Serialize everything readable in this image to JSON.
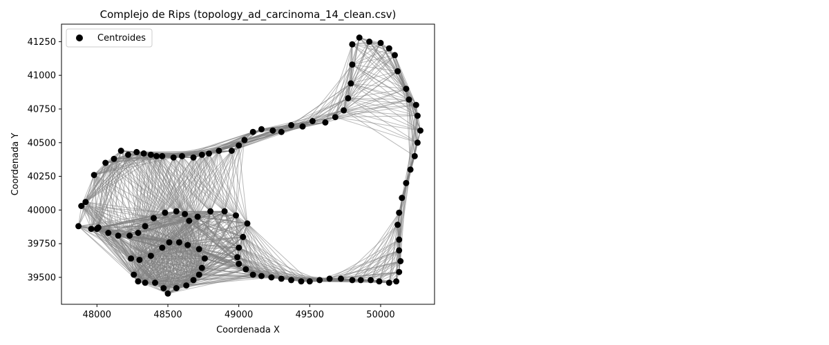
{
  "chart_data": {
    "type": "scatter",
    "title": "Complejo de Rips (topology_ad_carcinoma_14_clean.csv)",
    "xlabel": "Coordenada X",
    "ylabel": "Coordenada Y",
    "xlim": [
      47750,
      50380
    ],
    "ylim": [
      39300,
      41380
    ],
    "xticks": [
      48000,
      48500,
      49000,
      49500,
      50000
    ],
    "yticks": [
      39500,
      39750,
      40000,
      40250,
      40500,
      40750,
      41000,
      41250
    ],
    "grid": false,
    "legend_position": "top-left",
    "colors": {
      "points": "#000000",
      "edges": "#808080"
    },
    "series": [
      {
        "name": "Centroides",
        "points": [
          [
            47870,
            39880
          ],
          [
            47890,
            40030
          ],
          [
            47920,
            40060
          ],
          [
            47960,
            39860
          ],
          [
            48000,
            39860
          ],
          [
            47980,
            40260
          ],
          [
            48060,
            40350
          ],
          [
            48120,
            40380
          ],
          [
            48170,
            40440
          ],
          [
            48220,
            40410
          ],
          [
            48280,
            40430
          ],
          [
            48330,
            40420
          ],
          [
            48380,
            40410
          ],
          [
            48420,
            40400
          ],
          [
            48460,
            40400
          ],
          [
            48540,
            40390
          ],
          [
            48600,
            40400
          ],
          [
            48680,
            40390
          ],
          [
            48740,
            40410
          ],
          [
            48790,
            40420
          ],
          [
            48860,
            40440
          ],
          [
            48950,
            40440
          ],
          [
            49000,
            40480
          ],
          [
            49040,
            40520
          ],
          [
            49100,
            40580
          ],
          [
            49160,
            40600
          ],
          [
            49240,
            40590
          ],
          [
            49300,
            40580
          ],
          [
            49370,
            40630
          ],
          [
            49450,
            40620
          ],
          [
            49520,
            40660
          ],
          [
            49610,
            40650
          ],
          [
            49680,
            40690
          ],
          [
            49740,
            40740
          ],
          [
            49770,
            40830
          ],
          [
            49790,
            40940
          ],
          [
            49800,
            41080
          ],
          [
            49800,
            41230
          ],
          [
            49850,
            41280
          ],
          [
            49920,
            41250
          ],
          [
            50000,
            41240
          ],
          [
            50060,
            41200
          ],
          [
            50100,
            41150
          ],
          [
            50120,
            41030
          ],
          [
            50180,
            40900
          ],
          [
            50200,
            40820
          ],
          [
            50250,
            40780
          ],
          [
            50260,
            40700
          ],
          [
            50280,
            40590
          ],
          [
            50260,
            40500
          ],
          [
            50240,
            40400
          ],
          [
            50210,
            40300
          ],
          [
            50180,
            40200
          ],
          [
            50150,
            40090
          ],
          [
            50130,
            39980
          ],
          [
            50120,
            39890
          ],
          [
            50130,
            39780
          ],
          [
            50130,
            39700
          ],
          [
            50140,
            39620
          ],
          [
            50130,
            39540
          ],
          [
            50110,
            39470
          ],
          [
            50060,
            39460
          ],
          [
            49990,
            39470
          ],
          [
            49930,
            39480
          ],
          [
            49860,
            39480
          ],
          [
            49800,
            39480
          ],
          [
            49720,
            39490
          ],
          [
            49640,
            39490
          ],
          [
            49570,
            39480
          ],
          [
            49500,
            39470
          ],
          [
            49440,
            39470
          ],
          [
            49370,
            39480
          ],
          [
            49300,
            39490
          ],
          [
            49230,
            39500
          ],
          [
            49160,
            39510
          ],
          [
            49100,
            39520
          ],
          [
            49050,
            39560
          ],
          [
            49000,
            39600
          ],
          [
            48990,
            39650
          ],
          [
            49000,
            39720
          ],
          [
            49030,
            39800
          ],
          [
            49060,
            39900
          ],
          [
            48980,
            39960
          ],
          [
            48900,
            39990
          ],
          [
            48800,
            39990
          ],
          [
            48710,
            39950
          ],
          [
            48650,
            39920
          ],
          [
            48620,
            39970
          ],
          [
            48560,
            39990
          ],
          [
            48480,
            39980
          ],
          [
            48400,
            39940
          ],
          [
            48340,
            39880
          ],
          [
            48290,
            39830
          ],
          [
            48230,
            39810
          ],
          [
            48150,
            39810
          ],
          [
            48080,
            39830
          ],
          [
            48010,
            39870
          ],
          [
            48240,
            39640
          ],
          [
            48260,
            39520
          ],
          [
            48290,
            39470
          ],
          [
            48340,
            39460
          ],
          [
            48410,
            39460
          ],
          [
            48470,
            39420
          ],
          [
            48500,
            39380
          ],
          [
            48560,
            39420
          ],
          [
            48630,
            39440
          ],
          [
            48680,
            39480
          ],
          [
            48720,
            39520
          ],
          [
            48740,
            39570
          ],
          [
            48760,
            39640
          ],
          [
            48720,
            39710
          ],
          [
            48640,
            39740
          ],
          [
            48580,
            39760
          ],
          [
            48510,
            39760
          ],
          [
            48460,
            39720
          ],
          [
            48380,
            39660
          ],
          [
            48300,
            39630
          ]
        ]
      }
    ]
  }
}
